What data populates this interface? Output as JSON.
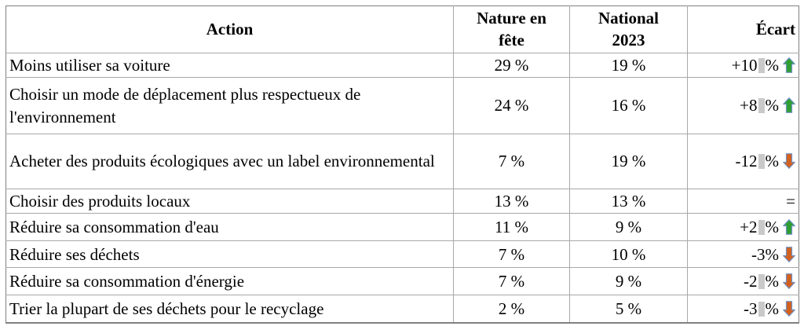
{
  "table": {
    "columns": [
      {
        "key": "action",
        "label": "Action",
        "align": "center"
      },
      {
        "key": "nature",
        "label": "Nature en\nfête",
        "align": "center"
      },
      {
        "key": "national",
        "label": "National\n2023",
        "align": "center"
      },
      {
        "key": "ecart",
        "label": "Écart",
        "align": "right"
      }
    ],
    "rows": [
      {
        "action": "Moins utiliser sa voiture",
        "nature": "29 %",
        "national": "19 %",
        "ecart": {
          "value": "+10",
          "shaded_space": true,
          "percent": "%",
          "trend": "up"
        }
      },
      {
        "action": "Choisir un mode de déplacement plus respectueux de l'environnement",
        "nature": "24 %",
        "national": "16 %",
        "ecart": {
          "value": "+8",
          "shaded_space": true,
          "percent": "%",
          "trend": "up"
        }
      },
      {
        "action": "Acheter des produits écologiques avec un label environnemental",
        "nature": "7 %",
        "national": "19 %",
        "ecart": {
          "value": "-12",
          "shaded_space": true,
          "percent": "%",
          "trend": "down"
        }
      },
      {
        "action": "Choisir des produits locaux",
        "nature": "13 %",
        "national": "13 %",
        "ecart": {
          "value": "=",
          "shaded_space": false,
          "percent": "",
          "trend": "none"
        }
      },
      {
        "action": "Réduire sa consommation d'eau",
        "nature": "11 %",
        "national": "9 %",
        "ecart": {
          "value": "+2",
          "shaded_space": true,
          "percent": "%",
          "trend": "up"
        }
      },
      {
        "action": "Réduire ses déchets",
        "nature": "7 %",
        "national": "10 %",
        "ecart": {
          "value": "-3%",
          "shaded_space": false,
          "percent": "",
          "trend": "down"
        }
      },
      {
        "action": "Réduire sa consommation d'énergie",
        "nature": "7 %",
        "national": "9 %",
        "ecart": {
          "value": "-2",
          "shaded_space": true,
          "percent": "%",
          "trend": "down"
        }
      },
      {
        "action": "Trier la plupart de ses déchets pour le recyclage",
        "nature": "2 %",
        "national": "5 %",
        "ecart": {
          "value": "-3",
          "shaded_space": true,
          "percent": "%",
          "trend": "down"
        }
      }
    ]
  },
  "colors": {
    "arrow_up_fill": "#2f9e33",
    "arrow_down_fill": "#d2611f",
    "arrow_stroke": "#7093c8",
    "field_shade": "#c9c9c9",
    "border_inner": "#a8a8a8",
    "border_outer": "#808080",
    "text": "#000000"
  }
}
